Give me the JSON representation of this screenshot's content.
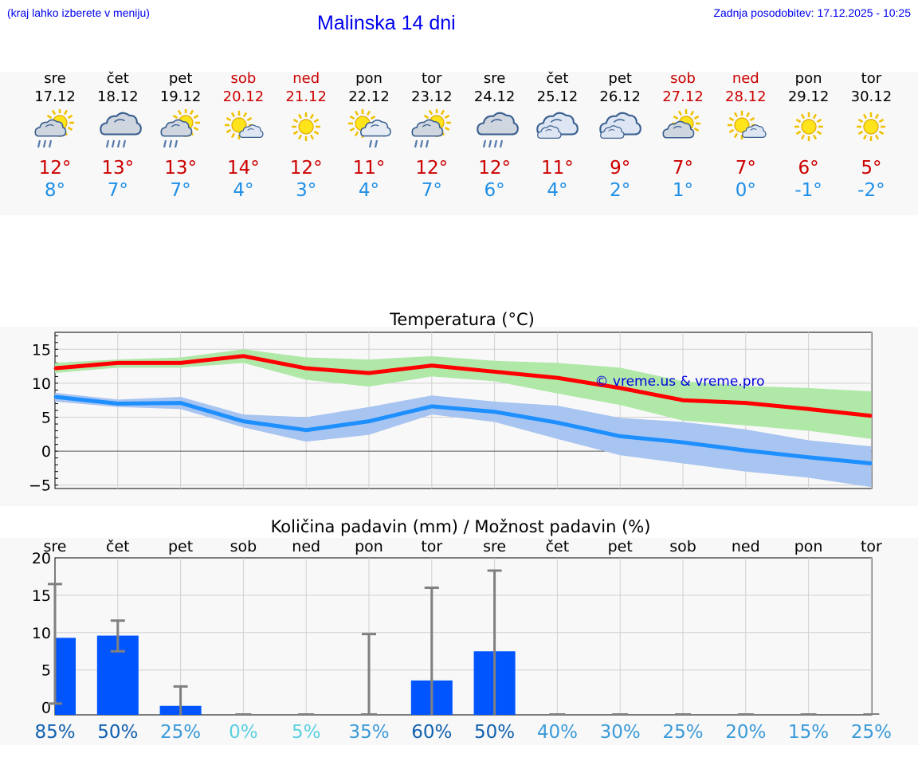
{
  "header": {
    "menu_hint": "(kraj lahko izberete v meniju)",
    "title": "Malinska 14 dni",
    "last_update": "Zadnja posodobitev: 17.12.2025 - 10:25"
  },
  "days": [
    {
      "weekday": "sre",
      "date": "17.12",
      "weekend": false,
      "icon": "sun-cloud-rain-icon",
      "tmax": "12°",
      "tmin": "8°"
    },
    {
      "weekday": "čet",
      "date": "18.12",
      "weekend": false,
      "icon": "cloud-rain-icon",
      "tmax": "13°",
      "tmin": "7°"
    },
    {
      "weekday": "pet",
      "date": "19.12",
      "weekend": false,
      "icon": "sun-cloud-rain-icon",
      "tmax": "13°",
      "tmin": "7°"
    },
    {
      "weekday": "sob",
      "date": "20.12",
      "weekend": true,
      "icon": "sun-small-cloud-icon",
      "tmax": "14°",
      "tmin": "4°"
    },
    {
      "weekday": "ned",
      "date": "21.12",
      "weekend": true,
      "icon": "sun-icon",
      "tmax": "12°",
      "tmin": "3°"
    },
    {
      "weekday": "pon",
      "date": "22.12",
      "weekend": false,
      "icon": "sun-cloud-light-rain-icon",
      "tmax": "11°",
      "tmin": "4°"
    },
    {
      "weekday": "tor",
      "date": "23.12",
      "weekend": false,
      "icon": "sun-cloud-rain-icon",
      "tmax": "12°",
      "tmin": "7°"
    },
    {
      "weekday": "sre",
      "date": "24.12",
      "weekend": false,
      "icon": "cloud-rain-icon",
      "tmax": "12°",
      "tmin": "6°"
    },
    {
      "weekday": "čet",
      "date": "25.12",
      "weekend": false,
      "icon": "cloudy-icon",
      "tmax": "11°",
      "tmin": "4°"
    },
    {
      "weekday": "pet",
      "date": "26.12",
      "weekend": false,
      "icon": "cloudy-icon",
      "tmax": "9°",
      "tmin": "2°"
    },
    {
      "weekday": "sob",
      "date": "27.12",
      "weekend": true,
      "icon": "sun-cloud-icon",
      "tmax": "7°",
      "tmin": "1°"
    },
    {
      "weekday": "ned",
      "date": "28.12",
      "weekend": true,
      "icon": "sun-small-cloud-icon",
      "tmax": "7°",
      "tmin": "0°"
    },
    {
      "weekday": "pon",
      "date": "29.12",
      "weekend": false,
      "icon": "sun-icon",
      "tmax": "6°",
      "tmin": "-1°"
    },
    {
      "weekday": "tor",
      "date": "30.12",
      "weekend": false,
      "icon": "sun-icon",
      "tmax": "5°",
      "tmin": "-2°"
    }
  ],
  "colors": {
    "max_line": "#ff0000",
    "max_band": "#b0e8a8",
    "min_line": "#1e8fff",
    "min_band": "#a8c4f0",
    "bar": "#0055ff",
    "errbar": "#808080",
    "weekend": "#cc0000",
    "temp_min_text": "#1e8fe6",
    "link": "#0000ee"
  },
  "chart_data": [
    {
      "type": "line",
      "title": "Temperatura (°C)",
      "watermark": "© vreme.us & vreme.pro",
      "ylim": [
        -5.5,
        17.5
      ],
      "yticks": [
        -5,
        0,
        5,
        10,
        15
      ],
      "x": [
        0,
        1,
        2,
        3,
        4,
        5,
        6,
        7,
        8,
        9,
        10,
        11,
        12,
        13
      ],
      "series": [
        {
          "name": "max",
          "values": [
            12.2,
            13.0,
            13.0,
            14.0,
            12.2,
            11.5,
            12.6,
            11.7,
            10.8,
            9.3,
            7.5,
            7.1,
            6.2,
            5.2
          ],
          "band_low": [
            11.5,
            12.3,
            12.3,
            13.0,
            10.5,
            9.5,
            11.0,
            10.3,
            8.5,
            6.8,
            4.5,
            3.8,
            3.0,
            1.8
          ],
          "band_high": [
            13.0,
            13.5,
            13.8,
            15.0,
            13.8,
            13.5,
            14.0,
            13.3,
            13.0,
            12.3,
            10.3,
            9.6,
            9.3,
            8.8
          ]
        },
        {
          "name": "min",
          "values": [
            8.0,
            7.0,
            7.1,
            4.4,
            3.1,
            4.4,
            6.6,
            5.8,
            4.2,
            2.2,
            1.3,
            0.1,
            -0.9,
            -1.8
          ],
          "band_low": [
            7.3,
            6.5,
            6.2,
            3.5,
            1.4,
            2.4,
            5.4,
            4.3,
            1.8,
            -0.6,
            -1.8,
            -3.0,
            -3.9,
            -5.3
          ],
          "band_high": [
            8.6,
            7.6,
            8.0,
            5.4,
            5.0,
            6.5,
            8.2,
            7.3,
            6.7,
            4.9,
            4.3,
            3.2,
            1.6,
            0.7
          ]
        }
      ]
    },
    {
      "type": "bar",
      "title": "Količina padavin (mm) / Možnost padavin (%)",
      "ylim": [
        -1,
        20
      ],
      "yticks": [
        0,
        5,
        10,
        15,
        20
      ],
      "categories": [
        "sre",
        "čet",
        "pet",
        "sob",
        "ned",
        "pon",
        "tor",
        "sre",
        "čet",
        "pet",
        "sob",
        "ned",
        "pon",
        "tor"
      ],
      "values": [
        9.3,
        9.6,
        0.2,
        0,
        0,
        0,
        3.6,
        7.5,
        0,
        0,
        0,
        0,
        0,
        0
      ],
      "error_low": [
        0.5,
        7.5,
        0,
        0,
        0,
        0,
        0,
        0,
        0,
        0,
        0,
        0,
        0,
        0
      ],
      "error_high": [
        16.5,
        11.6,
        2.8,
        0,
        0,
        9.8,
        16.0,
        18.3,
        0,
        0,
        0,
        0,
        0,
        0
      ],
      "probabilities": [
        "85%",
        "50%",
        "25%",
        "0%",
        "5%",
        "35%",
        "60%",
        "50%",
        "40%",
        "30%",
        "25%",
        "20%",
        "15%",
        "25%"
      ],
      "probability_values": [
        85,
        50,
        25,
        0,
        5,
        35,
        60,
        50,
        40,
        30,
        25,
        20,
        15,
        25
      ]
    }
  ]
}
